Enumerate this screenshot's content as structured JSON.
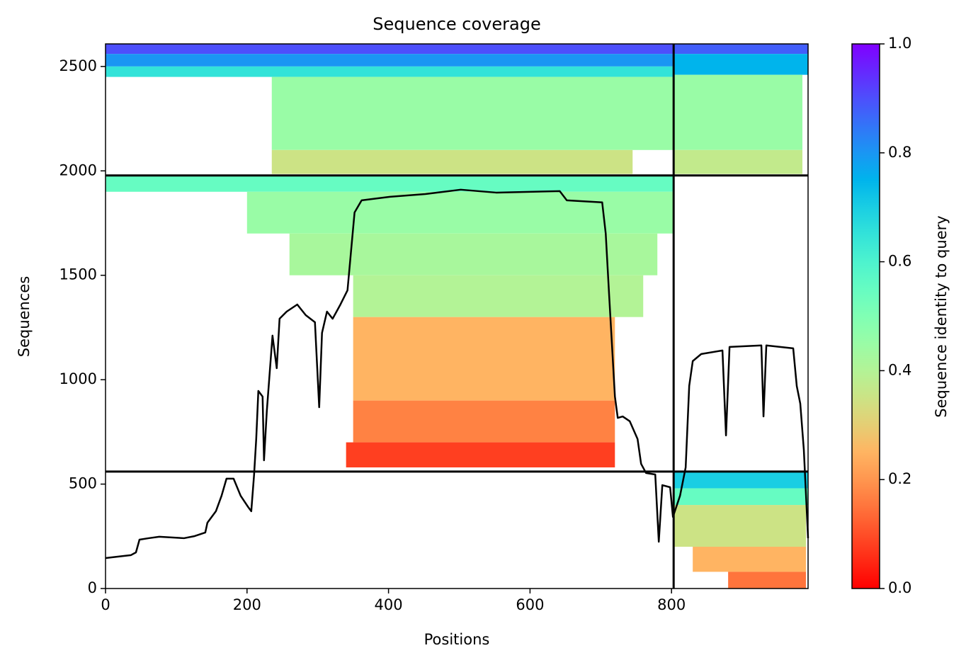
{
  "chart_data": {
    "type": "coverage",
    "title": "Sequence coverage",
    "xlabel": "Positions",
    "ylabel": "Sequences",
    "colorbar_label": "Sequence identity to query",
    "colormap": "rainbow_r",
    "xlim": [
      0,
      993
    ],
    "ylim": [
      0,
      2608
    ],
    "xticks": [
      0,
      200,
      400,
      600,
      800
    ],
    "yticks": [
      0,
      500,
      1000,
      1500,
      2000,
      2500
    ],
    "clim": [
      0,
      1
    ],
    "cticks": [
      {
        "value": 0,
        "label": "0.0"
      },
      0.2,
      0.4,
      0.6,
      0.8,
      {
        "value": 1,
        "label": "1.0"
      }
    ],
    "hlines": [
      560,
      1978
    ],
    "vlines": [
      803
    ],
    "blocks": [
      {
        "x0": 0,
        "x1": 803,
        "y0": 2560,
        "y1": 2608,
        "identity": 0.9
      },
      {
        "x0": 0,
        "x1": 803,
        "y0": 2500,
        "y1": 2560,
        "identity": 0.8
      },
      {
        "x0": 0,
        "x1": 803,
        "y0": 2450,
        "y1": 2500,
        "identity": 0.65
      },
      {
        "x0": 235,
        "x1": 803,
        "y0": 2100,
        "y1": 2450,
        "identity": 0.45
      },
      {
        "x0": 235,
        "x1": 745,
        "y0": 1985,
        "y1": 2100,
        "identity": 0.35
      },
      {
        "x0": 803,
        "x1": 993,
        "y0": 2560,
        "y1": 2608,
        "identity": 0.88
      },
      {
        "x0": 803,
        "x1": 993,
        "y0": 2460,
        "y1": 2560,
        "identity": 0.75
      },
      {
        "x0": 803,
        "x1": 985,
        "y0": 2100,
        "y1": 2460,
        "identity": 0.45
      },
      {
        "x0": 803,
        "x1": 985,
        "y0": 1985,
        "y1": 2100,
        "identity": 0.37
      },
      {
        "x0": 0,
        "x1": 803,
        "y0": 1900,
        "y1": 1978,
        "identity": 0.55
      },
      {
        "x0": 200,
        "x1": 803,
        "y0": 1700,
        "y1": 1900,
        "identity": 0.45
      },
      {
        "x0": 260,
        "x1": 780,
        "y0": 1500,
        "y1": 1700,
        "identity": 0.42
      },
      {
        "x0": 350,
        "x1": 760,
        "y0": 1300,
        "y1": 1500,
        "identity": 0.4
      },
      {
        "x0": 350,
        "x1": 720,
        "y0": 900,
        "y1": 1300,
        "identity": 0.25
      },
      {
        "x0": 350,
        "x1": 720,
        "y0": 700,
        "y1": 900,
        "identity": 0.17
      },
      {
        "x0": 340,
        "x1": 720,
        "y0": 580,
        "y1": 700,
        "identity": 0.08
      },
      {
        "x0": 803,
        "x1": 993,
        "y0": 480,
        "y1": 560,
        "identity": 0.7
      },
      {
        "x0": 803,
        "x1": 993,
        "y0": 400,
        "y1": 480,
        "identity": 0.55
      },
      {
        "x0": 803,
        "x1": 990,
        "y0": 200,
        "y1": 400,
        "identity": 0.35
      },
      {
        "x0": 830,
        "x1": 990,
        "y0": 80,
        "y1": 200,
        "identity": 0.25
      },
      {
        "x0": 880,
        "x1": 990,
        "y0": 0,
        "y1": 80,
        "identity": 0.15
      }
    ],
    "coverage": {
      "color": "#000000",
      "x": [
        0,
        26,
        36,
        43,
        48,
        61,
        76,
        111,
        126,
        141,
        144,
        156,
        164,
        171,
        181,
        191,
        201,
        206,
        210,
        213,
        216,
        222,
        224,
        228,
        236,
        242,
        246,
        256,
        271,
        283,
        296,
        302,
        306,
        313,
        321,
        332,
        342,
        352,
        362,
        402,
        452,
        502,
        552,
        642,
        652,
        702,
        707,
        712,
        720,
        724,
        731,
        741,
        752,
        757,
        764,
        777,
        782,
        787,
        798,
        802,
        812,
        820,
        825,
        830,
        842,
        872,
        877,
        882,
        927,
        930,
        934,
        972,
        977,
        982,
        987,
        993
      ],
      "y": [
        146,
        156,
        160,
        173,
        234,
        241,
        248,
        241,
        251,
        268,
        315,
        370,
        444,
        526,
        526,
        444,
        393,
        370,
        546,
        716,
        946,
        919,
        614,
        851,
        1211,
        1055,
        1292,
        1326,
        1360,
        1309,
        1275,
        868,
        1224,
        1326,
        1292,
        1360,
        1428,
        1801,
        1859,
        1876,
        1889,
        1910,
        1896,
        1903,
        1859,
        1849,
        1700,
        1394,
        919,
        817,
        824,
        801,
        716,
        597,
        553,
        546,
        224,
        495,
        485,
        343,
        444,
        580,
        970,
        1089,
        1123,
        1140,
        733,
        1157,
        1164,
        824,
        1164,
        1150,
        970,
        885,
        665,
        241
      ]
    }
  }
}
